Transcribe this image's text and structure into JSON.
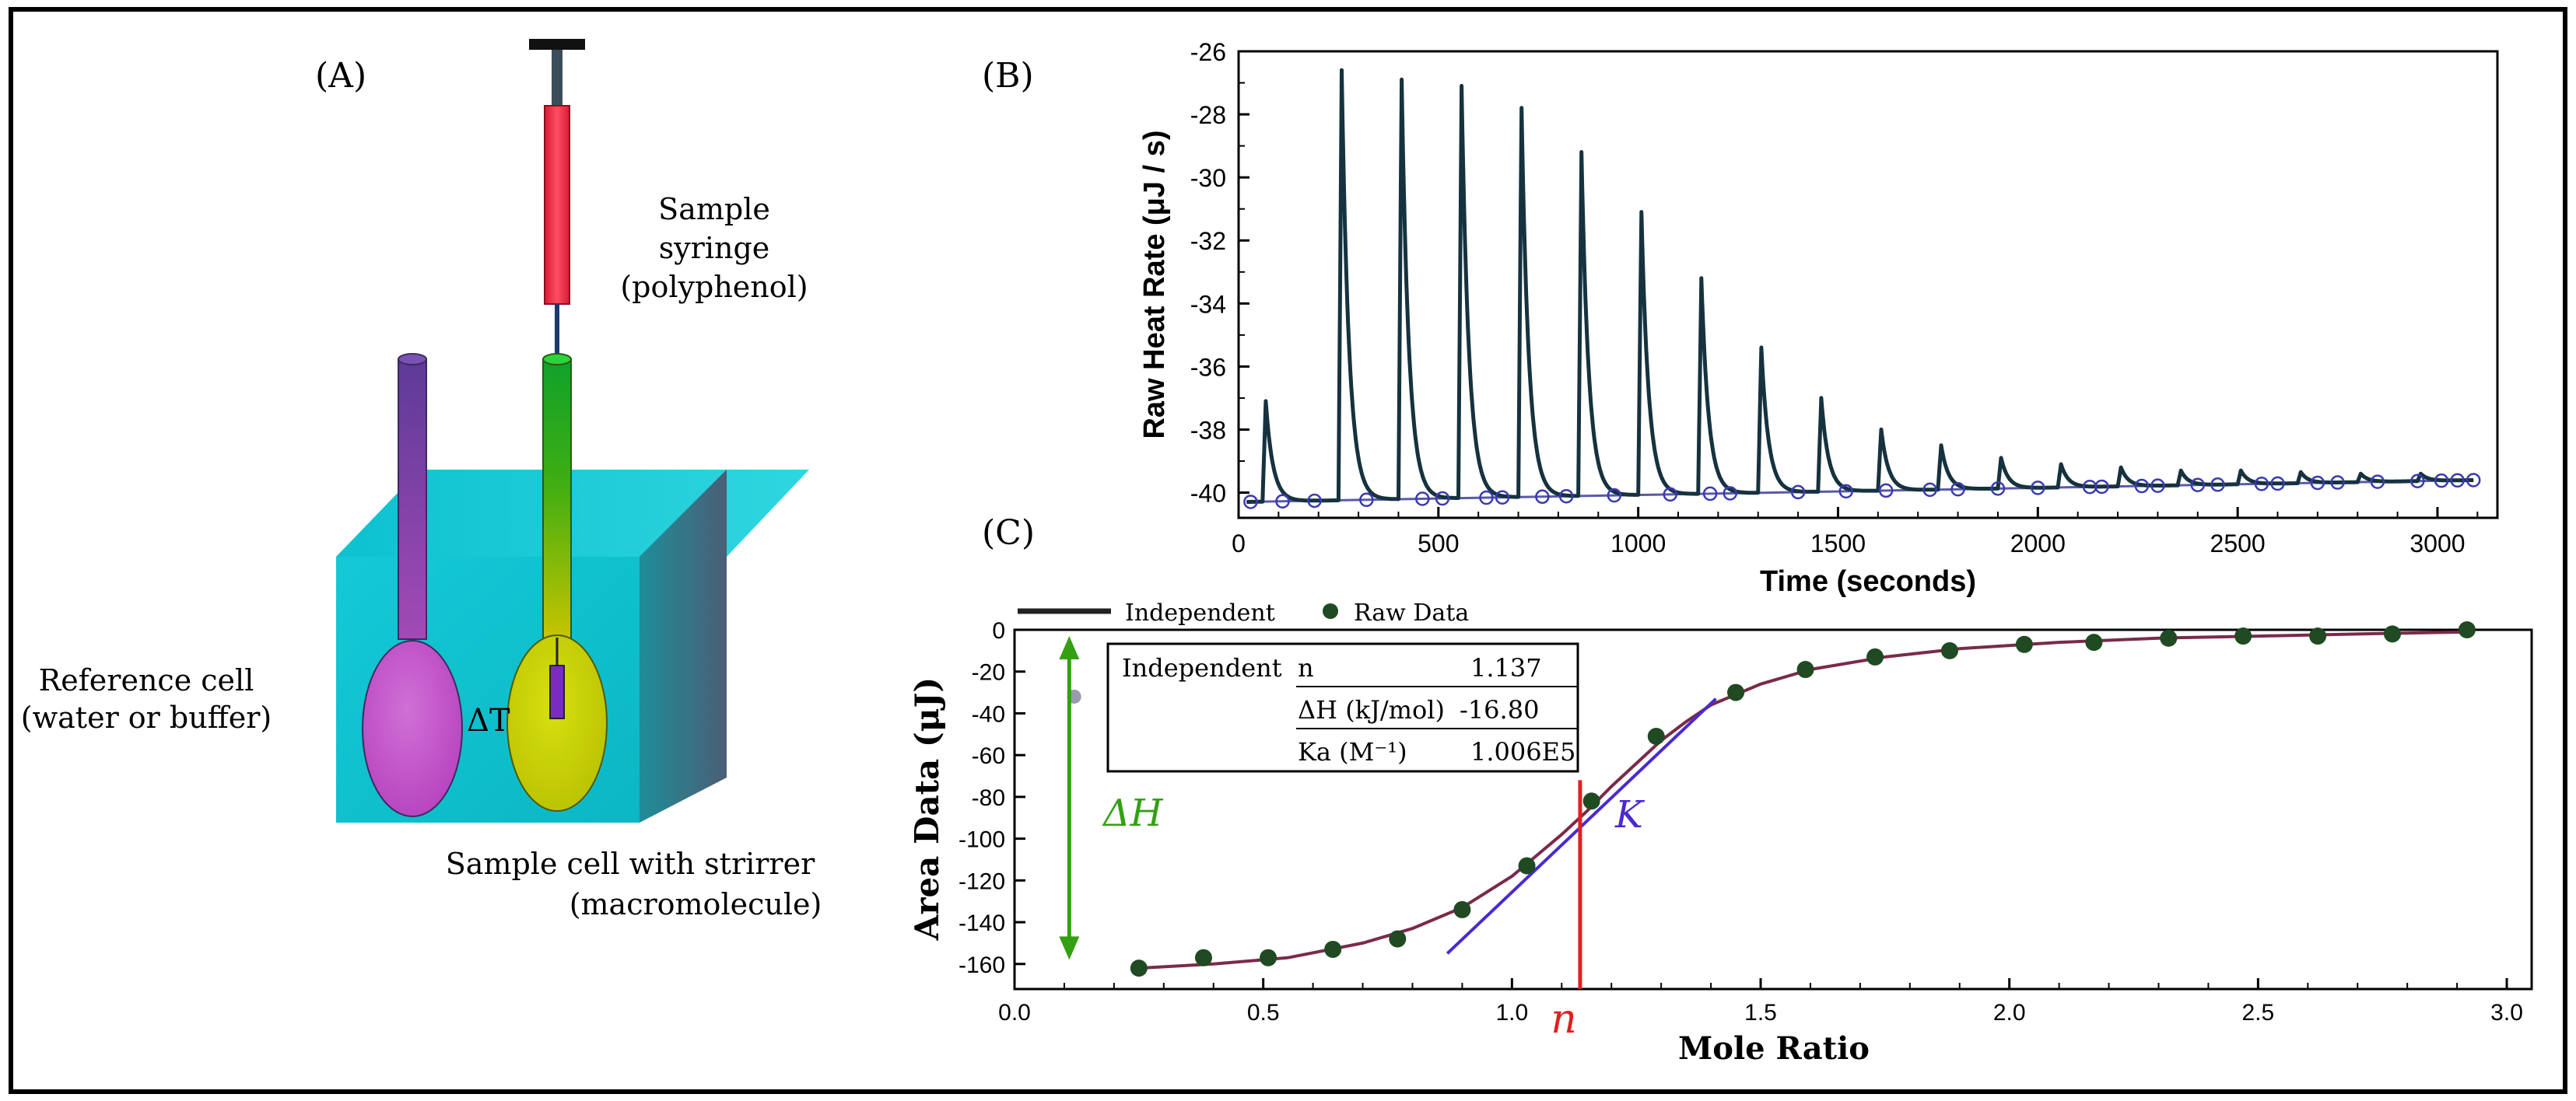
{
  "panelA": {
    "label": "(A)",
    "syringe_label_1": "Sample",
    "syringe_label_2": "syringe",
    "syringe_label_3": "(polyphenol)",
    "ref_label_1": "Reference cell",
    "ref_label_2": "(water or buffer)",
    "sample_label_1": "Sample cell with strirrer",
    "sample_label_2": "(macromolecule)",
    "delta_t": "ΔT"
  },
  "panelB": {
    "label": "(B)",
    "xlabel": "Time (seconds)",
    "ylabel": "Raw Heat Rate (μJ / s)",
    "xticks": [
      "0",
      "500",
      "1000",
      "1500",
      "2000",
      "2500",
      "3000"
    ],
    "yticks": [
      "-26",
      "-28",
      "-30",
      "-32",
      "-34",
      "-36",
      "-38",
      "-40"
    ]
  },
  "panelC": {
    "label": "(C)",
    "xlabel": "Mole Ratio",
    "ylabel": "Area Data (μJ)",
    "xticks": [
      "0.0",
      "0.5",
      "1.0",
      "1.5",
      "2.0",
      "2.5",
      "3.0"
    ],
    "yticks": [
      "0",
      "-20",
      "-40",
      "-60",
      "-80",
      "-100",
      "-120",
      "-140",
      "-160"
    ],
    "legend_line": "Independent",
    "legend_dots": "Raw Data",
    "table": {
      "r1c1": "Independent",
      "r1c2": "n",
      "r1c3": "1.137",
      "r2c2": "ΔH (kJ/mol)",
      "r2c3": "-16.80",
      "r3c2": "Ka (M⁻¹)",
      "r3c3": "1.006E5"
    },
    "ann_dh": "ΔH",
    "ann_k": "K",
    "ann_n": "n"
  },
  "colors": {
    "ref_tube_top": "#6a3d9a",
    "ref_bulb": "#c156c8",
    "sample_tube_top": "#12a52a",
    "sample_bulb": "#c8d400",
    "syringe": "#f0304a",
    "bath": "#19c8d4",
    "peak_line": "#16323f",
    "baseline": "#5a5aa8",
    "fit_line": "#7a2a4a",
    "raw_dots": "#1f4a22",
    "dh_arrow": "#33a012",
    "k_line": "#4a2ad0",
    "n_line": "#e02020"
  },
  "chart_data": [
    {
      "type": "line",
      "panel": "B",
      "xlim": [
        0,
        3150
      ],
      "ylim": [
        -40.8,
        -26
      ],
      "xlabel": "Time (seconds)",
      "ylabel": "Raw Heat Rate (μJ / s)",
      "baseline_start": -40.3,
      "baseline_end": -39.6,
      "injection_times": [
        60,
        250,
        400,
        550,
        700,
        850,
        1000,
        1150,
        1300,
        1450,
        1600,
        1750,
        1900,
        2050,
        2200,
        2350,
        2500,
        2650,
        2800,
        2950
      ],
      "peak_values": [
        -37.1,
        -26.6,
        -26.9,
        -27.1,
        -27.8,
        -29.2,
        -31.1,
        -33.2,
        -35.4,
        -37.0,
        -38.0,
        -38.5,
        -38.9,
        -39.1,
        -39.2,
        -39.3,
        -39.3,
        -39.35,
        -39.4,
        -39.4
      ],
      "baseline_markers_x": [
        30,
        110,
        190,
        320,
        460,
        510,
        620,
        660,
        760,
        820,
        940,
        1080,
        1180,
        1230,
        1400,
        1520,
        1620,
        1730,
        1800,
        1900,
        2000,
        2130,
        2160,
        2260,
        2300,
        2400,
        2450,
        2560,
        2600,
        2700,
        2750,
        2850,
        2950,
        3010,
        3050,
        3090
      ]
    },
    {
      "type": "scatter",
      "panel": "C",
      "xlim": [
        0,
        3.05
      ],
      "ylim": [
        -172,
        0
      ],
      "xlabel": "Mole Ratio",
      "ylabel": "Area Data (μJ)",
      "series": [
        {
          "name": "Raw Data",
          "x": [
            0.25,
            0.38,
            0.51,
            0.64,
            0.77,
            0.9,
            1.03,
            1.16,
            1.29,
            1.45,
            1.59,
            1.73,
            1.88,
            2.03,
            2.17,
            2.32,
            2.47,
            2.62,
            2.77,
            2.92
          ],
          "y": [
            -162,
            -157,
            -157,
            -153,
            -148,
            -134,
            -113,
            -82,
            -51,
            -30,
            -19,
            -13,
            -10,
            -7,
            -6,
            -4,
            -3,
            -3,
            -2,
            0
          ]
        },
        {
          "name": "Independent",
          "x": [
            0.25,
            0.4,
            0.55,
            0.7,
            0.8,
            0.9,
            1.0,
            1.05,
            1.1,
            1.15,
            1.2,
            1.25,
            1.3,
            1.35,
            1.4,
            1.5,
            1.6,
            1.75,
            1.9,
            2.1,
            2.3,
            2.5,
            2.7,
            2.92
          ],
          "y": [
            -162,
            -160,
            -157,
            -150,
            -143,
            -133,
            -118,
            -108,
            -98,
            -87,
            -75,
            -64,
            -53,
            -44,
            -36,
            -26,
            -19,
            -13,
            -9,
            -6,
            -4,
            -3,
            -2,
            -1
          ]
        }
      ],
      "excluded_point": {
        "x": 0.12,
        "y": -32
      },
      "dh_arrow": {
        "x": 0.11,
        "y_top": -3,
        "y_bottom": -158
      },
      "k_tangent": {
        "x1": 0.87,
        "y1": -155,
        "x2": 1.41,
        "y2": -33
      },
      "n_marker": {
        "x": 1.137,
        "y_top": -72,
        "y_bottom": -172
      }
    }
  ]
}
